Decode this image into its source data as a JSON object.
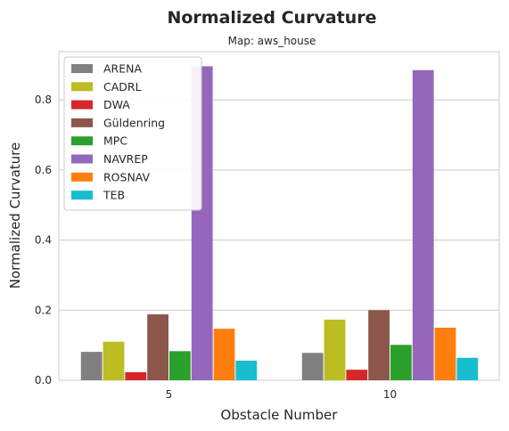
{
  "chart_data": {
    "type": "bar",
    "title": "Normalized Curvature",
    "subtitle": "Map: aws_house",
    "xlabel": "Obstacle Number",
    "ylabel": "Normalized Curvature",
    "categories": [
      "5",
      "10"
    ],
    "ylim": [
      0,
      0.95
    ],
    "yticks": [
      "0.0",
      "0.2",
      "0.4",
      "0.6",
      "0.8"
    ],
    "grid": true,
    "legend_position": "top-left",
    "series": [
      {
        "name": "ARENA",
        "color": "#808080",
        "values": [
          0.081,
          0.078
        ]
      },
      {
        "name": "CADRL",
        "color": "#bcbd22",
        "values": [
          0.11,
          0.173
        ]
      },
      {
        "name": "DWA",
        "color": "#d62728",
        "values": [
          0.023,
          0.03
        ]
      },
      {
        "name": "Güldenring",
        "color": "#8c564b",
        "values": [
          0.188,
          0.2
        ]
      },
      {
        "name": "MPC",
        "color": "#2ca02c",
        "values": [
          0.083,
          0.101
        ]
      },
      {
        "name": "NAVREP",
        "color": "#9467bd",
        "values": [
          0.896,
          0.885
        ]
      },
      {
        "name": "ROSNAV",
        "color": "#ff7f0e",
        "values": [
          0.147,
          0.15
        ]
      },
      {
        "name": "TEB",
        "color": "#17becf",
        "values": [
          0.056,
          0.064
        ]
      }
    ]
  }
}
